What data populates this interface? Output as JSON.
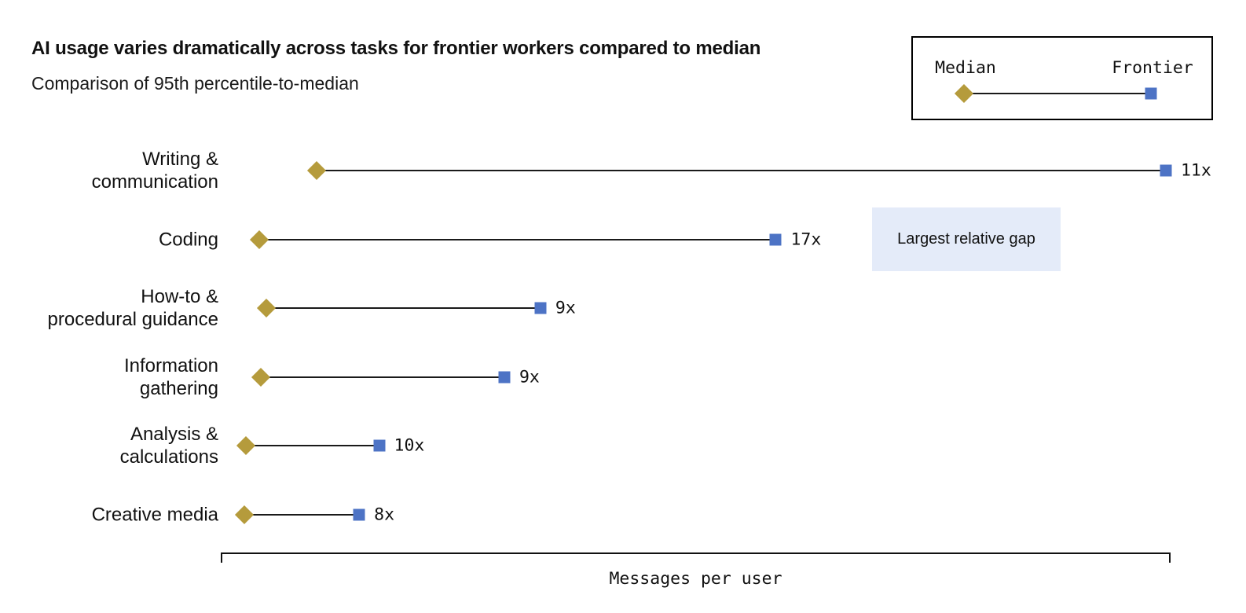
{
  "chart_data": {
    "type": "dumbbell",
    "title": "AI usage varies dramatically across tasks for frontier workers compared to median",
    "subtitle": "Comparison of 95th percentile-to-median",
    "xlabel": "Messages per user",
    "x_axis": {
      "tick_labels": [],
      "grid": false
    },
    "legend_labels": {
      "median": "Median",
      "frontier": "Frontier"
    },
    "legend_position": "top-right",
    "annotation": {
      "text": "Largest relative gap",
      "attached_to": "Coding"
    },
    "categories": [
      "Writing & communication",
      "Coding",
      "How-to & procedural guidance",
      "Information gathering",
      "Analysis & calculations",
      "Creative media"
    ],
    "rows": [
      {
        "category": "Writing & communication",
        "label_lines": [
          "Writing &",
          "communication"
        ],
        "ratio": 11,
        "ratio_label": "11x",
        "median_x_frac": 0.1,
        "frontier_x_frac": 0.995
      },
      {
        "category": "Coding",
        "label_lines": [
          "Coding"
        ],
        "ratio": 17,
        "ratio_label": "17x",
        "median_x_frac": 0.04,
        "frontier_x_frac": 0.584
      },
      {
        "category": "How-to & procedural guidance",
        "label_lines": [
          "How-to &",
          "procedural guidance"
        ],
        "ratio": 9,
        "ratio_label": "9x",
        "median_x_frac": 0.047,
        "frontier_x_frac": 0.336
      },
      {
        "category": "Information gathering",
        "label_lines": [
          "Information",
          "gathering"
        ],
        "ratio": 9,
        "ratio_label": "9x",
        "median_x_frac": 0.041,
        "frontier_x_frac": 0.298
      },
      {
        "category": "Analysis & calculations",
        "label_lines": [
          "Analysis &",
          "calculations"
        ],
        "ratio": 10,
        "ratio_label": "10x",
        "median_x_frac": 0.026,
        "frontier_x_frac": 0.166
      },
      {
        "category": "Creative media",
        "label_lines": [
          "Creative media"
        ],
        "ratio": 8,
        "ratio_label": "8x",
        "median_x_frac": 0.024,
        "frontier_x_frac": 0.145
      }
    ],
    "colors": {
      "median": "#b59b3c",
      "frontier": "#4d73c5",
      "line": "#1a1a1a",
      "annotation_bg": "#e4ebf9",
      "text": "#111111"
    }
  }
}
